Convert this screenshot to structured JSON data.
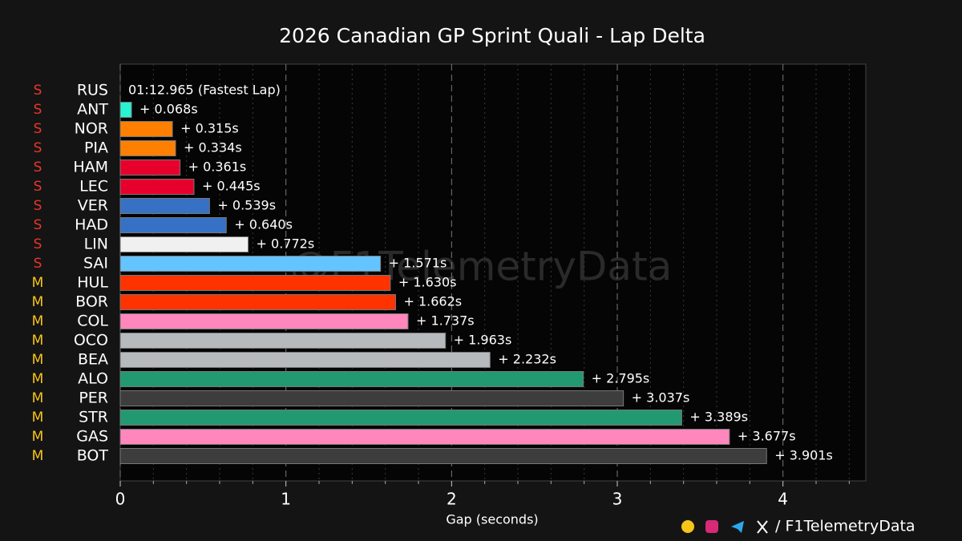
{
  "chart_data": {
    "type": "barh",
    "title": "2026 Canadian GP Sprint Quali - Lap Delta",
    "xlabel": "Gap (seconds)",
    "watermark": "@F1TelemetryData",
    "handle": "/ F1TelemetryData",
    "categories": [
      "RUS",
      "ANT",
      "NOR",
      "PIA",
      "HAM",
      "LEC",
      "VER",
      "HAD",
      "LIN",
      "SAI",
      "HUL",
      "BOR",
      "COL",
      "OCO",
      "BEA",
      "ALO",
      "PER",
      "STR",
      "GAS",
      "BOT"
    ],
    "tyres": [
      "S",
      "S",
      "S",
      "S",
      "S",
      "S",
      "S",
      "S",
      "S",
      "S",
      "M",
      "M",
      "M",
      "M",
      "M",
      "M",
      "M",
      "M",
      "M",
      "M"
    ],
    "tyre_colors": {
      "S": "#e8352b",
      "M": "#f5c518"
    },
    "values": [
      0,
      0.068,
      0.315,
      0.334,
      0.361,
      0.445,
      0.539,
      0.64,
      0.772,
      1.571,
      1.63,
      1.662,
      1.737,
      1.963,
      2.232,
      2.795,
      3.037,
      3.389,
      3.677,
      3.901
    ],
    "value_labels": [
      "01:12.965 (Fastest Lap)",
      "+ 0.068s",
      "+ 0.315s",
      "+ 0.334s",
      "+ 0.361s",
      "+ 0.445s",
      "+ 0.539s",
      "+ 0.640s",
      "+ 0.772s",
      "+ 1.571s",
      "+ 1.630s",
      "+ 1.662s",
      "+ 1.737s",
      "+ 1.963s",
      "+ 2.232s",
      "+ 2.795s",
      "+ 3.037s",
      "+ 3.389s",
      "+ 3.677s",
      "+ 3.901s"
    ],
    "colors": [
      "#27F4D2",
      "#27F4D2",
      "#FF8000",
      "#FF8000",
      "#E8002D",
      "#E8002D",
      "#3671C6",
      "#3671C6",
      "#f0f0f0",
      "#64C4FF",
      "#FF3300",
      "#FF3300",
      "#FF87BC",
      "#B6BABD",
      "#B6BABD",
      "#229971",
      "#3d3d3d",
      "#229971",
      "#FF87BC",
      "#3d3d3d"
    ],
    "xlim": [
      0,
      4.5
    ],
    "xticks": [
      0,
      1,
      2,
      3,
      4
    ],
    "xminorticks": [
      0.2,
      0.4,
      0.6,
      0.8,
      1.2,
      1.4,
      1.6,
      1.8,
      2.2,
      2.4,
      2.6,
      2.8,
      3.2,
      3.4,
      3.6,
      3.8,
      4.2,
      4.4
    ],
    "grid": true
  }
}
